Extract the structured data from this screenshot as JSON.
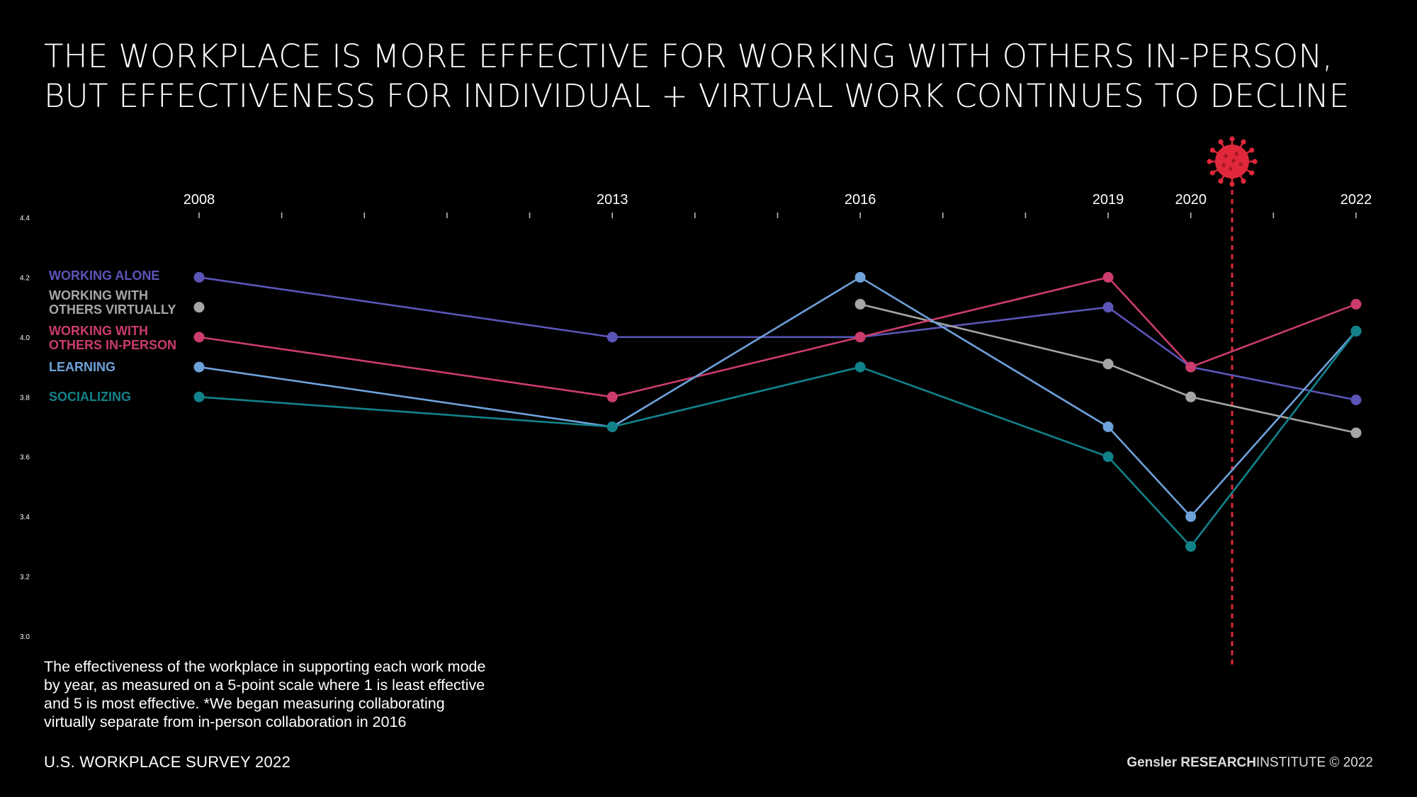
{
  "title_lines": [
    "THE WORKPLACE IS MORE EFFECTIVE FOR WORKING WITH OTHERS IN-PERSON,",
    "BUT EFFECTIVENESS FOR INDIVIDUAL + VIRTUAL WORK CONTINUES TO DECLINE"
  ],
  "note_lines": [
    "The effectiveness of the workplace in supporting each work mode",
    "by year, as measured on a 5-point scale where 1 is least effective",
    "and 5 is most effective. *We began measuring collaborating",
    "virtually separate from in-person collaboration in 2016"
  ],
  "footer": {
    "survey": "U.S. WORKPLACE SURVEY 2022",
    "brand": "Gensler",
    "research": "RESEARCH",
    "institute": "INSTITUTE",
    "copyright": "© 2022"
  },
  "chart_data": {
    "type": "line",
    "x_labels": [
      "2008",
      "2013",
      "2016",
      "2019",
      "2020",
      "2022"
    ],
    "x_range": [
      2008,
      2022
    ],
    "ylim": [
      3.0,
      4.4
    ],
    "y_ticks": [
      "3.0",
      "3.2",
      "3.4",
      "3.6",
      "3.8",
      "4.0",
      "4.2",
      "4.4"
    ],
    "grid": false,
    "legend_placement": "left",
    "annotations": [
      {
        "type": "pandemic-marker",
        "icon": "virus-icon",
        "x": 2020.5,
        "color": "#e0283a",
        "style": "dashed-vertical-line"
      }
    ],
    "series": [
      {
        "name": "WORKING ALONE",
        "color": "#5b55b8",
        "points": [
          [
            2008,
            4.2
          ],
          [
            2013,
            4.0
          ],
          [
            2016,
            4.0
          ],
          [
            2019,
            4.1
          ],
          [
            2020,
            3.9
          ],
          [
            2022,
            3.79
          ]
        ]
      },
      {
        "name": "WORKING WITH OTHERS VIRTUALLY",
        "name_lines": [
          "WORKING WITH",
          "OTHERS VIRTUALLY"
        ],
        "color": "#a6a6a6",
        "points": [
          [
            2016,
            4.11
          ],
          [
            2019,
            3.91
          ],
          [
            2020,
            3.8
          ],
          [
            2022,
            3.68
          ]
        ],
        "legend_dot_value": 4.1
      },
      {
        "name": "WORKING WITH OTHERS IN-PERSON",
        "name_lines": [
          "WORKING WITH",
          "OTHERS IN-PERSON"
        ],
        "color": "#cc3c6c",
        "points": [
          [
            2008,
            4.0
          ],
          [
            2013,
            3.8
          ],
          [
            2016,
            4.0
          ],
          [
            2019,
            4.2
          ],
          [
            2020,
            3.9
          ],
          [
            2022,
            4.11
          ]
        ]
      },
      {
        "name": "LEARNING",
        "color": "#6fa2db",
        "points": [
          [
            2008,
            3.9
          ],
          [
            2013,
            3.7
          ],
          [
            2016,
            4.2
          ],
          [
            2019,
            3.7
          ],
          [
            2020,
            3.4
          ],
          [
            2022,
            4.02
          ]
        ]
      },
      {
        "name": "SOCIALIZING",
        "color": "#12828a",
        "points": [
          [
            2008,
            3.8
          ],
          [
            2013,
            3.7
          ],
          [
            2016,
            3.9
          ],
          [
            2019,
            3.6
          ],
          [
            2020,
            3.3
          ],
          [
            2022,
            4.02
          ]
        ]
      }
    ]
  }
}
